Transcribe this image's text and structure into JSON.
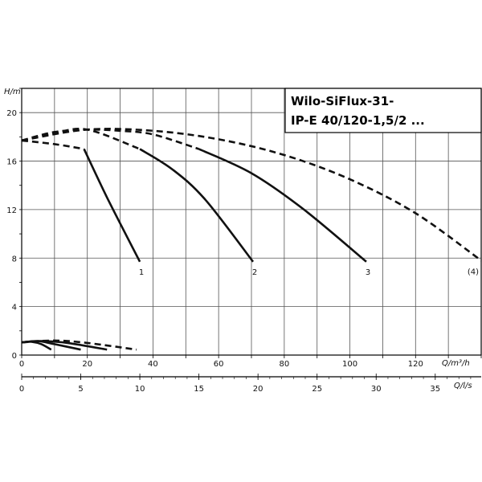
{
  "chart_data": {
    "type": "line",
    "title_lines": [
      "Wilo-SiFlux-31-",
      "IP-E 40/120-1,5/2 ..."
    ],
    "ylabel": "H/m",
    "xlabel": "Q/m³/h",
    "x2label": "Q/l/s",
    "xlim": [
      0,
      140
    ],
    "ylim": [
      0,
      22
    ],
    "x2lim": [
      0,
      38.89
    ],
    "xticks": [
      "0",
      "20",
      "40",
      "60",
      "80",
      "100",
      "120"
    ],
    "xtick_values": [
      0,
      20,
      40,
      60,
      80,
      100,
      120
    ],
    "yticks": [
      "0",
      "4",
      "8",
      "12",
      "16",
      "20"
    ],
    "ytick_values": [
      0,
      4,
      8,
      12,
      16,
      20
    ],
    "x2ticks": [
      "0",
      "5",
      "10",
      "15",
      "20",
      "25",
      "30",
      "35"
    ],
    "x2tick_values": [
      0,
      5,
      10,
      15,
      20,
      25,
      30,
      35
    ],
    "grid": true,
    "series": [
      {
        "name": "1",
        "style": "solid",
        "x": [
          19,
          26,
          36
        ],
        "y": [
          17,
          13,
          7.7
        ]
      },
      {
        "name": "2",
        "style": "solid",
        "x": [
          36,
          46,
          56,
          70.5
        ],
        "y": [
          17,
          15.3,
          12.8,
          7.7
        ]
      },
      {
        "name": "3",
        "style": "solid",
        "x": [
          54,
          70,
          86,
          105
        ],
        "y": [
          17,
          15,
          12,
          7.7
        ]
      },
      {
        "name": "(4)",
        "style": "dashed",
        "x": [
          0,
          20,
          40,
          60,
          80,
          100,
          120,
          140
        ],
        "y": [
          17.7,
          18.6,
          18.5,
          17.8,
          16.5,
          14.5,
          11.7,
          7.8
        ]
      },
      {
        "name": "",
        "style": "dashed",
        "x": [
          0,
          10,
          19
        ],
        "y": [
          17.7,
          17.4,
          17
        ]
      },
      {
        "name": "",
        "style": "dashed",
        "x": [
          0,
          10,
          20,
          36
        ],
        "y": [
          17.7,
          18.3,
          18.6,
          17
        ]
      },
      {
        "name": "",
        "style": "dashed",
        "x": [
          0,
          10,
          20,
          30,
          40,
          54
        ],
        "y": [
          17.7,
          18.4,
          18.6,
          18.5,
          18.2,
          17
        ]
      },
      {
        "name": "",
        "style": "solid",
        "x": [
          0,
          3,
          6,
          9
        ],
        "y": [
          1.05,
          1.1,
          0.9,
          0.45
        ]
      },
      {
        "name": "",
        "style": "solid",
        "x": [
          0,
          5,
          10,
          18
        ],
        "y": [
          1.05,
          1.15,
          0.9,
          0.45
        ]
      },
      {
        "name": "",
        "style": "solid",
        "x": [
          0,
          6,
          14,
          26
        ],
        "y": [
          1.05,
          1.15,
          1.0,
          0.45
        ]
      },
      {
        "name": "",
        "style": "dashed",
        "x": [
          0,
          10,
          20,
          35
        ],
        "y": [
          1.05,
          1.2,
          1.0,
          0.45
        ]
      }
    ]
  }
}
